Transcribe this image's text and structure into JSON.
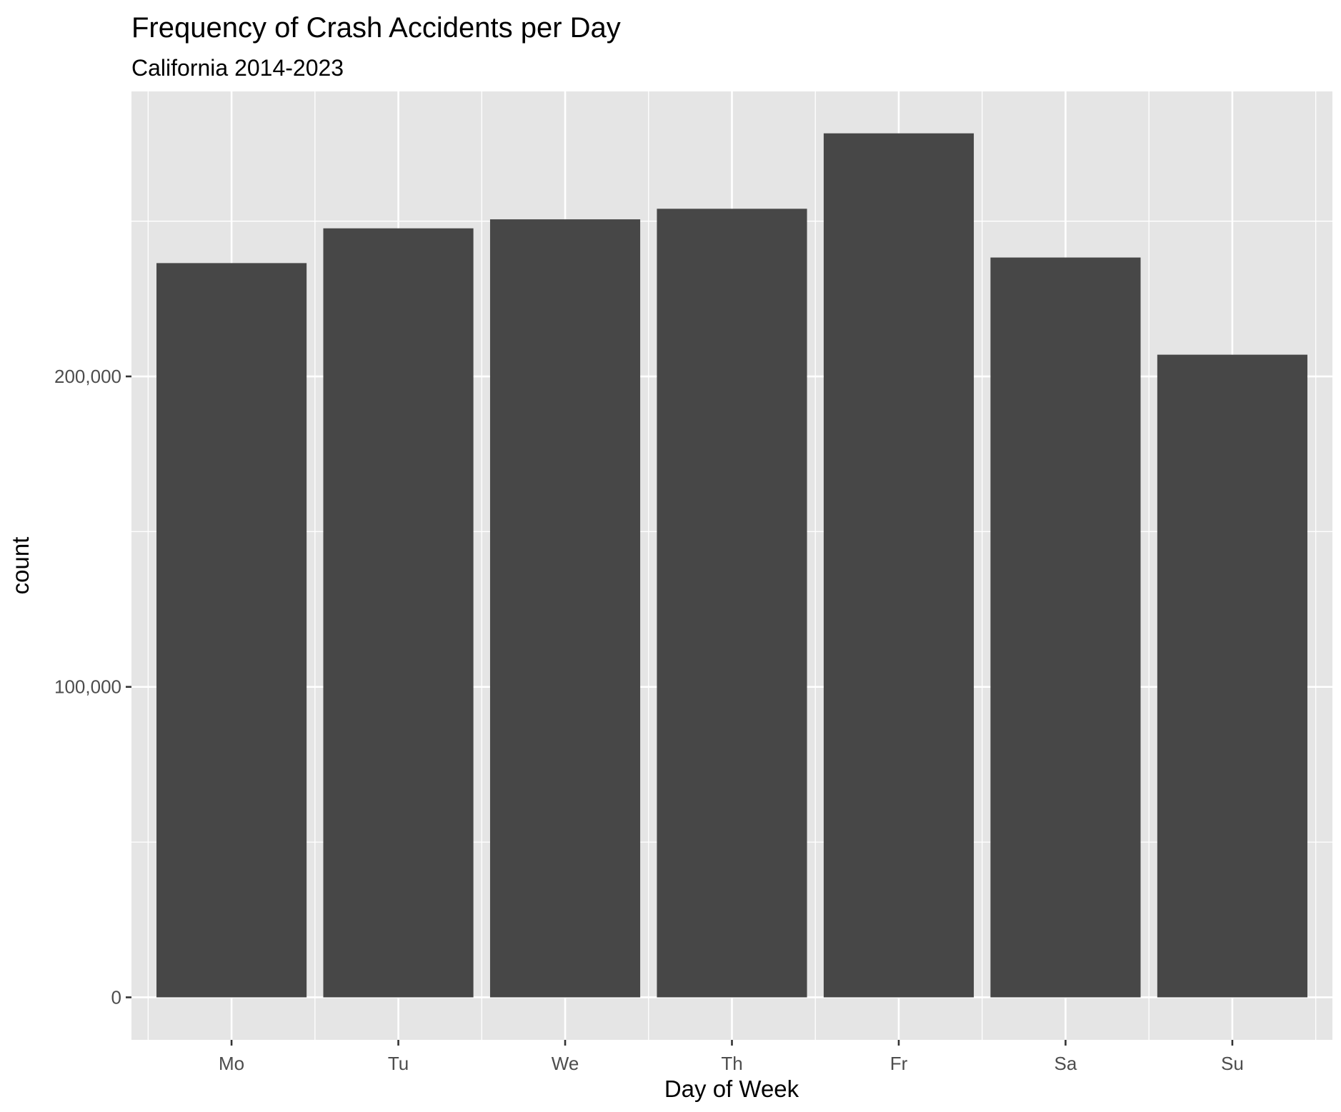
{
  "chart_data": {
    "type": "bar",
    "title": "Frequency of Crash Accidents per Day",
    "subtitle": "California 2014-2023",
    "xlabel": "Day of Week",
    "ylabel": "count",
    "categories": [
      "Mo",
      "Tu",
      "We",
      "Th",
      "Fr",
      "Sa",
      "Su"
    ],
    "values": [
      236500,
      247700,
      250600,
      254000,
      278300,
      238300,
      207000
    ],
    "ylim": [
      -13700,
      291800
    ],
    "y_ticks": [
      0,
      100000,
      200000
    ],
    "y_tick_labels": [
      "0",
      "100,000",
      "200,000"
    ],
    "grid": true,
    "colors": {
      "panel": "#e5e5e5",
      "grid": "#ffffff",
      "bar": "#474747",
      "tick_text": "#4d4d4d",
      "tick_mark": "#333333"
    }
  }
}
